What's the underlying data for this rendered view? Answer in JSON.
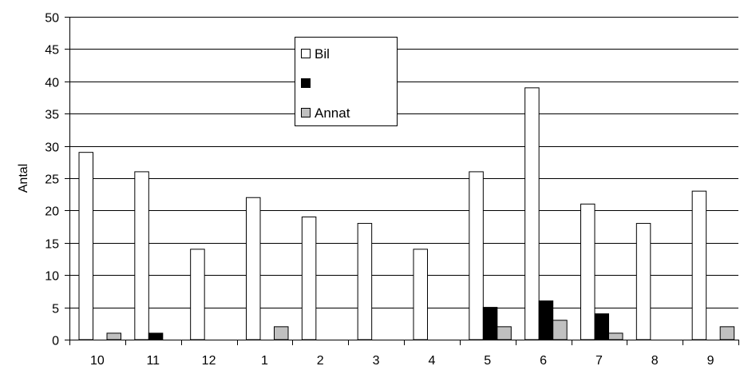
{
  "chart_data": {
    "type": "bar",
    "title": "",
    "xlabel": "",
    "ylabel": "Antal",
    "ylim": [
      0,
      50
    ],
    "yticks": [
      0,
      5,
      10,
      15,
      20,
      25,
      30,
      35,
      40,
      45,
      50
    ],
    "grid": true,
    "legend_position": "top-center",
    "categories": [
      "10",
      "11",
      "12",
      "1",
      "2",
      "3",
      "4",
      "5",
      "6",
      "7",
      "8",
      "9"
    ],
    "series": [
      {
        "name": "Bil",
        "color": "#ffffff",
        "values": [
          29,
          26,
          14,
          22,
          19,
          18,
          14,
          26,
          39,
          21,
          18,
          23
        ]
      },
      {
        "name": "",
        "color": "#000000",
        "values": [
          0,
          1,
          0,
          0,
          0,
          0,
          0,
          5,
          6,
          4,
          0,
          0
        ]
      },
      {
        "name": "Annat",
        "color": "#c0c0c0",
        "values": [
          1,
          0,
          0,
          2,
          0,
          0,
          0,
          2,
          3,
          1,
          0,
          2
        ]
      }
    ]
  }
}
